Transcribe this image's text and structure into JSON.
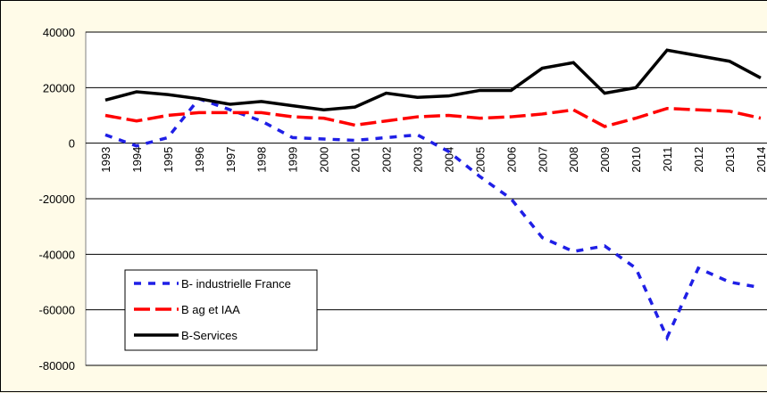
{
  "chart_data": {
    "type": "line",
    "categories": [
      "1993",
      "1994",
      "1995",
      "1996",
      "1997",
      "1998",
      "1999",
      "2000",
      "2001",
      "2002",
      "2003",
      "2004",
      "2005",
      "2006",
      "2007",
      "2008",
      "2009",
      "2010",
      "2011",
      "2012",
      "2013",
      "2014"
    ],
    "series": [
      {
        "name": "B- industrielle France",
        "color": "#1f1fe6",
        "dash": "8,8",
        "values": [
          3000,
          -1000,
          2000,
          16000,
          12000,
          8000,
          2000,
          1500,
          1000,
          2000,
          3000,
          -3000,
          -12000,
          -20000,
          -34000,
          -39000,
          -37000,
          -45000,
          -70000,
          -45000,
          -50000,
          -52000
        ]
      },
      {
        "name": "B ag et IAA",
        "color": "#ff0000",
        "dash": "18,6",
        "values": [
          10000,
          8000,
          10000,
          11000,
          11000,
          11000,
          9500,
          9000,
          6500,
          8000,
          9500,
          10000,
          9000,
          9500,
          10500,
          12000,
          6000,
          9000,
          12500,
          12000,
          11500,
          9000
        ]
      },
      {
        "name": "B-Services",
        "color": "#000000",
        "dash": "none",
        "values": [
          15500,
          18500,
          17500,
          16000,
          14000,
          15000,
          13500,
          12000,
          13000,
          18000,
          16500,
          17000,
          19000,
          19000,
          27000,
          29000,
          18000,
          20000,
          33500,
          31500,
          29500,
          23500
        ]
      }
    ],
    "ylim": [
      -80000,
      40000
    ],
    "yticks": [
      -80000,
      -60000,
      -40000,
      -20000,
      0,
      20000,
      40000
    ],
    "grid": true
  }
}
